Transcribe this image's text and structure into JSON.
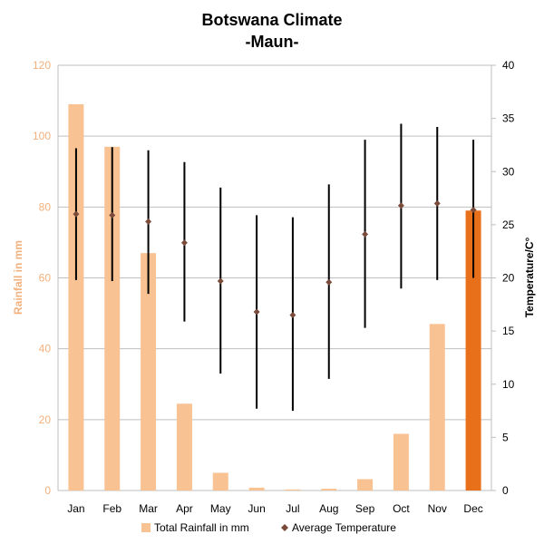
{
  "chart_data": {
    "type": "bar",
    "title": "Botswana Climate",
    "subtitle": "-Maun-",
    "categories": [
      "Jan",
      "Feb",
      "Mar",
      "Apr",
      "May",
      "Jun",
      "Jul",
      "Aug",
      "Sep",
      "Oct",
      "Nov",
      "Dec"
    ],
    "y_left": {
      "label": "Rainfall in mm",
      "ylim": [
        0,
        120
      ],
      "ticks": [
        "0",
        "20",
        "40",
        "60",
        "80",
        "100",
        "120"
      ]
    },
    "y_right": {
      "label": "Temperature/C°",
      "ylim": [
        0,
        40
      ],
      "ticks": [
        "0",
        "5",
        "10",
        "15",
        "20",
        "25",
        "30",
        "35",
        "40"
      ]
    },
    "grid": true,
    "legend_position": "bottom",
    "series": [
      {
        "name": "Total Rainfall in mm",
        "kind": "bar",
        "axis": "left",
        "values": [
          109,
          97,
          67,
          24.5,
          5,
          0.8,
          0.3,
          0.5,
          3.2,
          16,
          47,
          79
        ],
        "color": "#f9c293",
        "highlight_color": "#e8701a",
        "highlight_index": 11
      },
      {
        "name": "Average Temperature",
        "kind": "point_with_range",
        "axis": "right",
        "values": [
          26,
          25.9,
          25.3,
          23.3,
          19.7,
          16.8,
          16.5,
          19.6,
          24.1,
          26.8,
          27,
          26.4
        ],
        "min": [
          19.8,
          19.7,
          18.5,
          15.9,
          11,
          7.7,
          7.5,
          10.5,
          15.3,
          19,
          19.8,
          20
        ],
        "max": [
          32.2,
          32.3,
          32,
          30.9,
          28.5,
          25.9,
          25.7,
          28.8,
          33,
          34.5,
          34.2,
          33
        ],
        "color": "#7a4a3a",
        "range_color": "#000000"
      }
    ]
  }
}
